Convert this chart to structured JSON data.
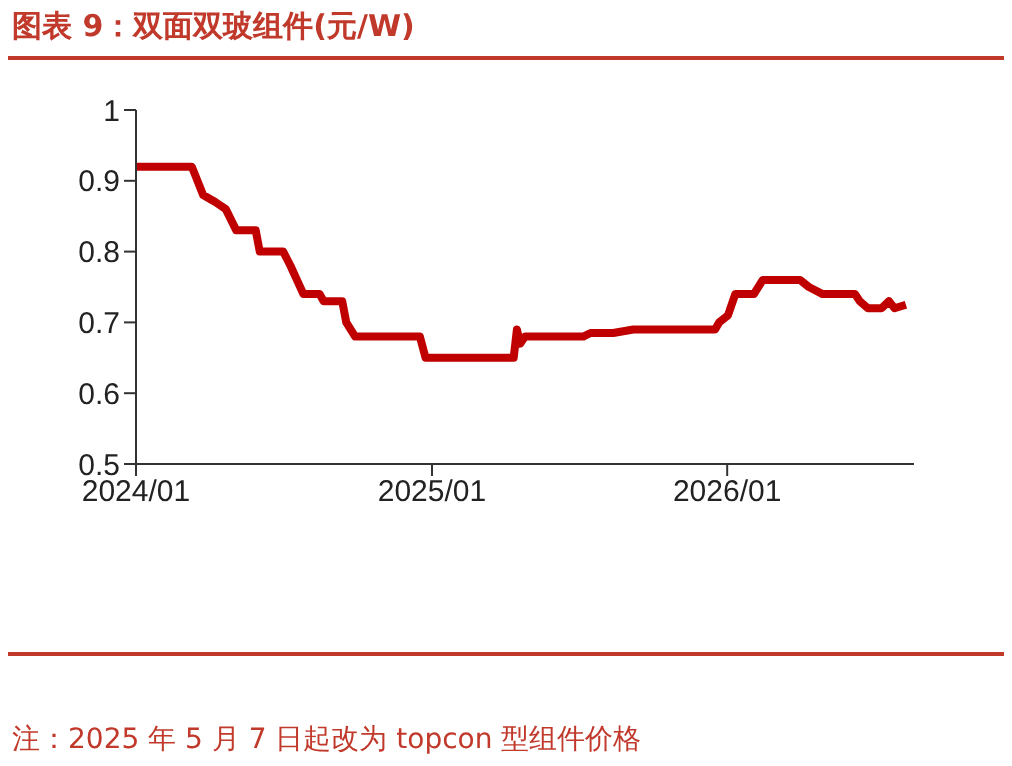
{
  "chart_data": {
    "type": "line",
    "title": "图表 9：双面双玻组件(元/W)",
    "annotations": [
      "注：2025 年 5 月 7 日起改为 topcon 型组件价格"
    ],
    "x": [
      "2024-01-01",
      "2024-03-10",
      "2024-03-24",
      "2024-04-08",
      "2024-04-21",
      "2024-05-04",
      "2024-05-28",
      "2024-06-02",
      "2024-07-01",
      "2024-07-10",
      "2024-07-26",
      "2024-08-15",
      "2024-08-20",
      "2024-09-12",
      "2024-09-17",
      "2024-09-28",
      "2024-12-17",
      "2024-12-24",
      "2025-04-12",
      "2025-04-16",
      "2025-04-20",
      "2025-04-26",
      "2025-07-07",
      "2025-07-16",
      "2025-08-13",
      "2025-09-07",
      "2025-12-17",
      "2025-12-22",
      "2026-01-02",
      "2026-01-11",
      "2026-02-03",
      "2026-02-14",
      "2026-04-01",
      "2026-04-12",
      "2026-04-29",
      "2026-06-08",
      "2026-06-14",
      "2026-06-24",
      "2026-07-11",
      "2026-07-20",
      "2026-07-27",
      "2026-08-10"
    ],
    "series": [
      {
        "color": "#c00000",
        "values": [
          0.92,
          0.92,
          0.88,
          0.87,
          0.86,
          0.83,
          0.83,
          0.8,
          0.8,
          0.78,
          0.74,
          0.74,
          0.73,
          0.73,
          0.7,
          0.68,
          0.68,
          0.65,
          0.65,
          0.69,
          0.67,
          0.68,
          0.68,
          0.685,
          0.685,
          0.69,
          0.69,
          0.7,
          0.71,
          0.74,
          0.74,
          0.76,
          0.76,
          0.75,
          0.74,
          0.74,
          0.73,
          0.72,
          0.72,
          0.73,
          0.72,
          0.725
        ]
      }
    ],
    "xlim": [
      "2024-01-01",
      "2026-08-20"
    ],
    "xticks": [
      {
        "value": "2024-01-01",
        "label": "2024/01"
      },
      {
        "value": "2025-01-01",
        "label": "2025/01"
      },
      {
        "value": "2026-01-01",
        "label": "2026/01"
      }
    ],
    "ylim": [
      0.5,
      1
    ],
    "yticks": [
      0.5,
      0.6,
      0.7,
      0.8,
      0.9,
      1
    ],
    "grid": false,
    "marker": "none",
    "line_style": "solid"
  }
}
